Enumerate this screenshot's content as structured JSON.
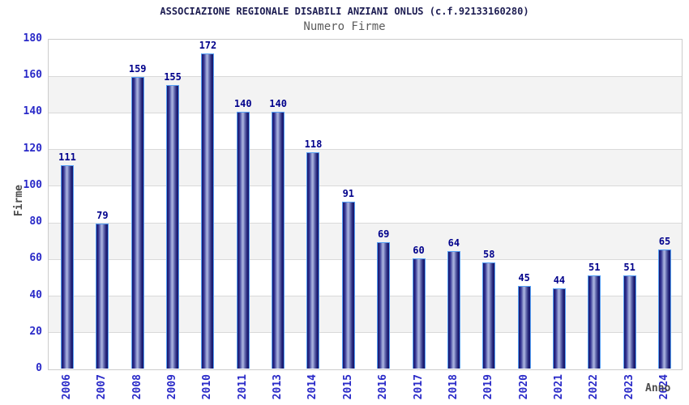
{
  "chart_data": {
    "type": "bar",
    "title": "ASSOCIAZIONE REGIONALE DISABILI ANZIANI ONLUS (c.f.92133160280)",
    "subtitle": "Numero Firme",
    "xlabel": "Anno",
    "ylabel": "Firme",
    "categories": [
      "2006",
      "2007",
      "2008",
      "2009",
      "2010",
      "2011",
      "2013",
      "2014",
      "2015",
      "2016",
      "2017",
      "2018",
      "2019",
      "2020",
      "2021",
      "2022",
      "2023",
      "2024"
    ],
    "values": [
      111,
      79,
      159,
      155,
      172,
      140,
      140,
      118,
      91,
      69,
      60,
      64,
      58,
      45,
      44,
      51,
      51,
      65
    ],
    "ylim": [
      0,
      180
    ],
    "yticks": [
      0,
      20,
      40,
      60,
      80,
      100,
      120,
      140,
      160,
      180
    ],
    "grid": "horizontal-on",
    "bands": "alternating white / light-gray every 20 units",
    "legend": "none",
    "colors": {
      "bar_dark": "#15156a",
      "bar_light": "#aab2dd",
      "bar_border": "#56a0f5",
      "value_label": "#00008b",
      "tick_label": "#2a2ac8",
      "axis_title": "#4d4d4d",
      "title": "#1d1d52",
      "subtitle": "#5c5c5c",
      "band_gray": "#f3f3f3",
      "gridline": "#d9d9d9",
      "plot_border": "#cccccc",
      "background": "#ffffff"
    }
  }
}
